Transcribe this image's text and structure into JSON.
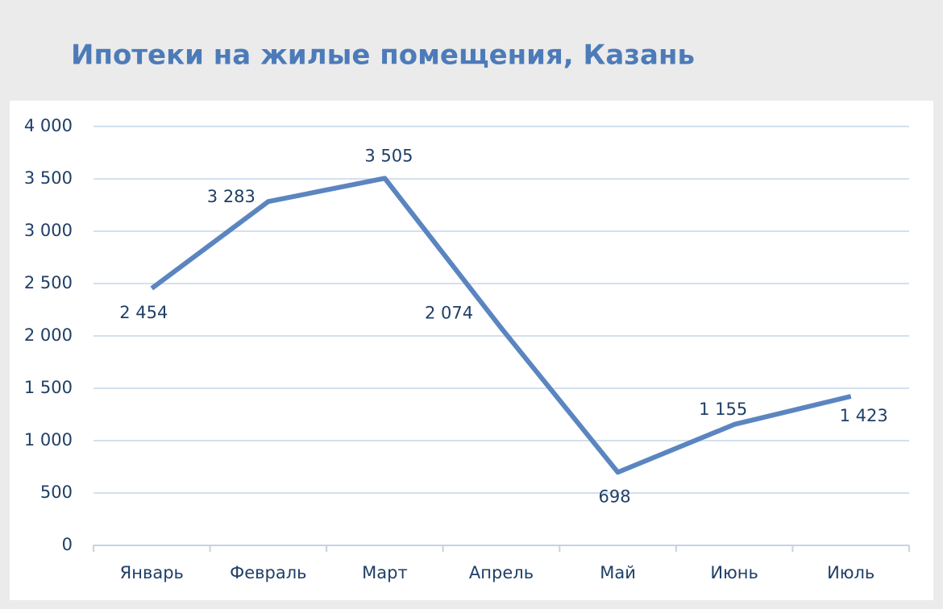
{
  "chart_data": {
    "type": "line",
    "title": "Ипотеки на жилые помещения, Казань",
    "categories": [
      "Январь",
      "Февраль",
      "Март",
      "Апрель",
      "Май",
      "Июнь",
      "Июль"
    ],
    "series": [
      {
        "color": "#5a85c0",
        "values": [
          2454,
          3283,
          3505,
          2074,
          698,
          1155,
          1423
        ],
        "value_labels": [
          "2 454",
          "3 283",
          "3 505",
          "2 074",
          "698",
          "1 155",
          "1 423"
        ]
      }
    ],
    "ylim": [
      0,
      4000
    ],
    "yticks": [
      0,
      500,
      {
        "value": 1000,
        "label": "1 000"
      },
      {
        "value": 1500,
        "label": "1 500"
      },
      {
        "value": 2000,
        "label": "2 000"
      },
      {
        "value": 2500,
        "label": "2 500"
      },
      {
        "value": 3000,
        "label": "3 000"
      },
      {
        "value": 3500,
        "label": "3 500"
      },
      {
        "value": 4000,
        "label": "4 000"
      }
    ],
    "grid": true
  }
}
